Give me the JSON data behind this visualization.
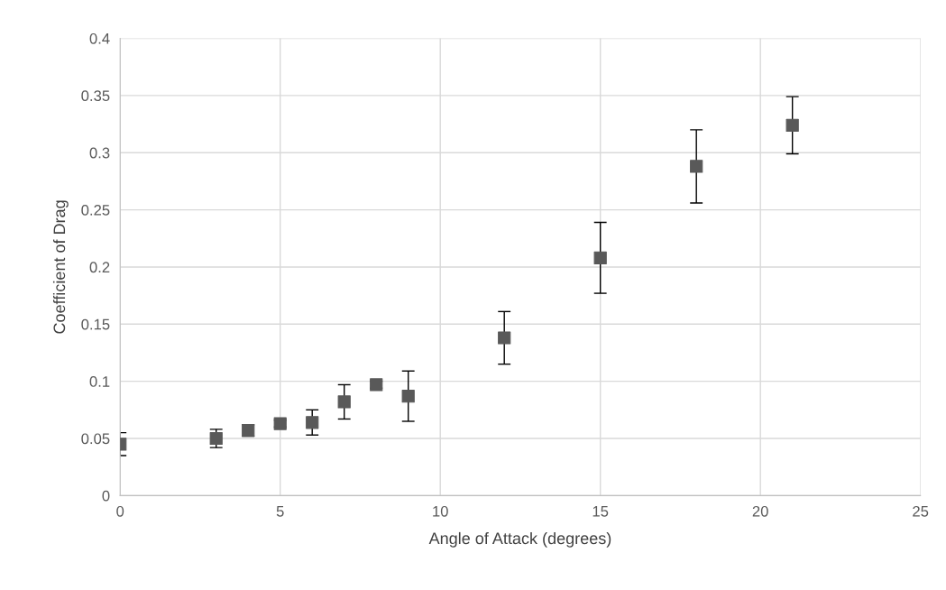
{
  "chart_data": {
    "type": "scatter",
    "xlabel": "Angle of Attack (degrees)",
    "ylabel": "Coefficient of Drag",
    "x": [
      0,
      3,
      4,
      5,
      6,
      7,
      8,
      9,
      12,
      15,
      18,
      21
    ],
    "series": [
      {
        "color": "#595959",
        "values": [
          0.045,
          0.05,
          0.057,
          0.063,
          0.064,
          0.082,
          0.097,
          0.087,
          0.138,
          0.208,
          0.288,
          0.324
        ],
        "errors": [
          0.01,
          0.008,
          0.005,
          0.003,
          0.011,
          0.015,
          0.003,
          0.022,
          0.023,
          0.031,
          0.032,
          0.025
        ]
      }
    ],
    "xlim": [
      0,
      25
    ],
    "xticks": [
      0,
      5,
      10,
      15,
      20,
      25
    ],
    "ylim": [
      0,
      0.4
    ],
    "yticks": [
      0,
      0.05,
      0.1,
      0.15,
      0.2,
      0.25,
      0.3,
      0.35,
      0.4
    ],
    "grid": true,
    "marker": "square",
    "legend": false
  }
}
